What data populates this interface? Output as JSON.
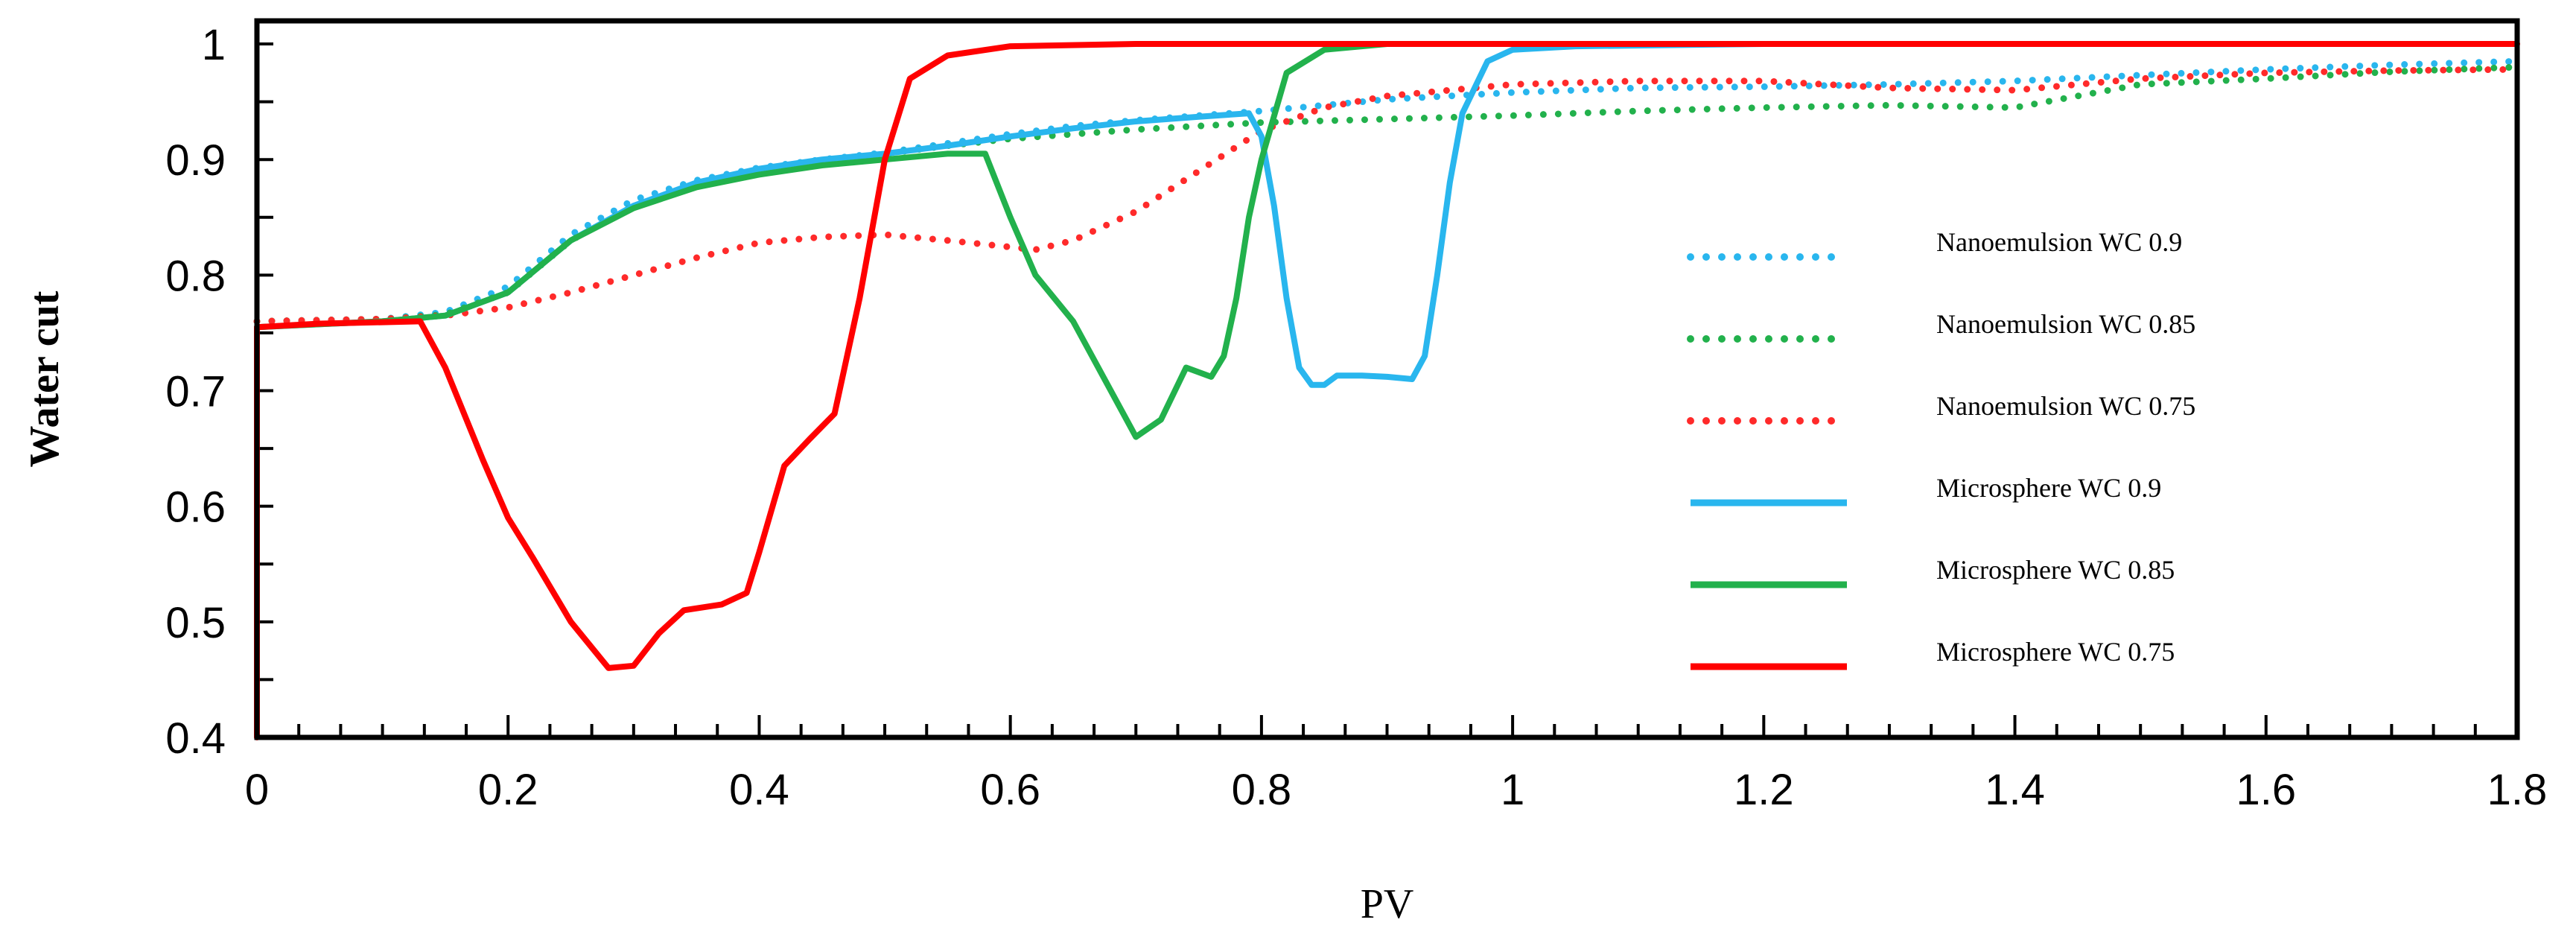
{
  "chart_data": {
    "type": "line",
    "title": "",
    "xlabel": "PV",
    "ylabel": "Water cut",
    "xlim": [
      0,
      1.8
    ],
    "ylim": [
      0.4,
      1.02
    ],
    "xticks": [
      0,
      0.2,
      0.4,
      0.6,
      0.8,
      1,
      1.2,
      1.4,
      1.6,
      1.8
    ],
    "xtick_labels": [
      "0",
      "0.2",
      "0.4",
      "0.6",
      "0.8",
      "1",
      "1.2",
      "1.4",
      "1.6",
      "1.8"
    ],
    "yticks": [
      0.4,
      0.5,
      0.6,
      0.7,
      0.8,
      0.9,
      1.0
    ],
    "ytick_labels": [
      "0.4",
      "0.5",
      "0.6",
      "0.7",
      "0.8",
      "0.9",
      "1"
    ],
    "legend_position": "right-center",
    "series": [
      {
        "name": "Nanoemulsion WC 0.9",
        "color": "#29b6ee",
        "style": "dotted",
        "points": [
          [
            0,
            0.76
          ],
          [
            0.1,
            0.762
          ],
          [
            0.15,
            0.768
          ],
          [
            0.2,
            0.79
          ],
          [
            0.25,
            0.835
          ],
          [
            0.3,
            0.865
          ],
          [
            0.35,
            0.882
          ],
          [
            0.4,
            0.893
          ],
          [
            0.45,
            0.9
          ],
          [
            0.5,
            0.906
          ],
          [
            0.55,
            0.914
          ],
          [
            0.6,
            0.922
          ],
          [
            0.65,
            0.929
          ],
          [
            0.7,
            0.934
          ],
          [
            0.75,
            0.938
          ],
          [
            0.8,
            0.942
          ],
          [
            0.85,
            0.947
          ],
          [
            0.9,
            0.952
          ],
          [
            1.0,
            0.958
          ],
          [
            1.1,
            0.962
          ],
          [
            1.2,
            0.963
          ],
          [
            1.3,
            0.965
          ],
          [
            1.4,
            0.968
          ],
          [
            1.5,
            0.973
          ],
          [
            1.6,
            0.978
          ],
          [
            1.7,
            0.982
          ],
          [
            1.8,
            0.985
          ]
        ]
      },
      {
        "name": "Nanoemulsion WC 0.85",
        "color": "#22b14c",
        "style": "dotted",
        "points": [
          [
            0,
            0.76
          ],
          [
            0.1,
            0.762
          ],
          [
            0.15,
            0.766
          ],
          [
            0.2,
            0.785
          ],
          [
            0.25,
            0.83
          ],
          [
            0.3,
            0.86
          ],
          [
            0.35,
            0.878
          ],
          [
            0.4,
            0.89
          ],
          [
            0.45,
            0.898
          ],
          [
            0.5,
            0.905
          ],
          [
            0.55,
            0.912
          ],
          [
            0.6,
            0.918
          ],
          [
            0.7,
            0.926
          ],
          [
            0.8,
            0.932
          ],
          [
            0.9,
            0.935
          ],
          [
            1.0,
            0.938
          ],
          [
            1.1,
            0.942
          ],
          [
            1.2,
            0.945
          ],
          [
            1.3,
            0.947
          ],
          [
            1.4,
            0.945
          ],
          [
            1.45,
            0.955
          ],
          [
            1.5,
            0.965
          ],
          [
            1.6,
            0.97
          ],
          [
            1.7,
            0.976
          ],
          [
            1.8,
            0.98
          ]
        ]
      },
      {
        "name": "Nanoemulsion WC 0.75",
        "color": "#ff2a2a",
        "style": "dotted",
        "points": [
          [
            0,
            0.76
          ],
          [
            0.1,
            0.762
          ],
          [
            0.15,
            0.765
          ],
          [
            0.2,
            0.772
          ],
          [
            0.25,
            0.785
          ],
          [
            0.3,
            0.8
          ],
          [
            0.35,
            0.815
          ],
          [
            0.4,
            0.828
          ],
          [
            0.45,
            0.833
          ],
          [
            0.5,
            0.835
          ],
          [
            0.55,
            0.83
          ],
          [
            0.62,
            0.822
          ],
          [
            0.65,
            0.83
          ],
          [
            0.7,
            0.855
          ],
          [
            0.75,
            0.89
          ],
          [
            0.8,
            0.925
          ],
          [
            0.85,
            0.945
          ],
          [
            0.9,
            0.955
          ],
          [
            1.0,
            0.965
          ],
          [
            1.1,
            0.968
          ],
          [
            1.2,
            0.968
          ],
          [
            1.3,
            0.962
          ],
          [
            1.4,
            0.96
          ],
          [
            1.5,
            0.97
          ],
          [
            1.6,
            0.975
          ],
          [
            1.7,
            0.977
          ],
          [
            1.8,
            0.978
          ]
        ]
      },
      {
        "name": "Microsphere WC 0.9",
        "color": "#29b6ee",
        "style": "solid",
        "points": [
          [
            0,
            0.755
          ],
          [
            0.1,
            0.76
          ],
          [
            0.15,
            0.765
          ],
          [
            0.2,
            0.785
          ],
          [
            0.25,
            0.83
          ],
          [
            0.3,
            0.86
          ],
          [
            0.35,
            0.88
          ],
          [
            0.4,
            0.892
          ],
          [
            0.45,
            0.9
          ],
          [
            0.5,
            0.905
          ],
          [
            0.55,
            0.912
          ],
          [
            0.6,
            0.92
          ],
          [
            0.65,
            0.927
          ],
          [
            0.7,
            0.933
          ],
          [
            0.75,
            0.937
          ],
          [
            0.79,
            0.94
          ],
          [
            0.8,
            0.92
          ],
          [
            0.81,
            0.86
          ],
          [
            0.82,
            0.78
          ],
          [
            0.83,
            0.72
          ],
          [
            0.84,
            0.705
          ],
          [
            0.85,
            0.705
          ],
          [
            0.86,
            0.713
          ],
          [
            0.88,
            0.713
          ],
          [
            0.9,
            0.712
          ],
          [
            0.92,
            0.71
          ],
          [
            0.93,
            0.73
          ],
          [
            0.94,
            0.8
          ],
          [
            0.95,
            0.88
          ],
          [
            0.96,
            0.94
          ],
          [
            0.98,
            0.985
          ],
          [
            1.0,
            0.995
          ],
          [
            1.05,
            0.998
          ],
          [
            1.2,
            1.0
          ],
          [
            1.32,
            1.0
          ]
        ]
      },
      {
        "name": "Microsphere WC 0.85",
        "color": "#22b14c",
        "style": "solid",
        "points": [
          [
            0,
            0.755
          ],
          [
            0.1,
            0.76
          ],
          [
            0.15,
            0.765
          ],
          [
            0.2,
            0.785
          ],
          [
            0.25,
            0.83
          ],
          [
            0.3,
            0.858
          ],
          [
            0.35,
            0.876
          ],
          [
            0.4,
            0.887
          ],
          [
            0.45,
            0.895
          ],
          [
            0.5,
            0.9
          ],
          [
            0.55,
            0.905
          ],
          [
            0.58,
            0.905
          ],
          [
            0.6,
            0.85
          ],
          [
            0.62,
            0.8
          ],
          [
            0.65,
            0.76
          ],
          [
            0.7,
            0.66
          ],
          [
            0.72,
            0.675
          ],
          [
            0.74,
            0.72
          ],
          [
            0.76,
            0.712
          ],
          [
            0.77,
            0.73
          ],
          [
            0.78,
            0.78
          ],
          [
            0.79,
            0.85
          ],
          [
            0.8,
            0.9
          ],
          [
            0.82,
            0.975
          ],
          [
            0.85,
            0.995
          ],
          [
            0.9,
            1.0
          ]
        ]
      },
      {
        "name": "Microsphere WC 0.75",
        "color": "#ff0000",
        "style": "solid",
        "points": [
          [
            0,
            0.4
          ],
          [
            0,
            0.755
          ],
          [
            0.05,
            0.758
          ],
          [
            0.13,
            0.76
          ],
          [
            0.15,
            0.72
          ],
          [
            0.18,
            0.64
          ],
          [
            0.2,
            0.59
          ],
          [
            0.22,
            0.555
          ],
          [
            0.25,
            0.5
          ],
          [
            0.28,
            0.46
          ],
          [
            0.3,
            0.462
          ],
          [
            0.32,
            0.49
          ],
          [
            0.34,
            0.51
          ],
          [
            0.37,
            0.515
          ],
          [
            0.39,
            0.525
          ],
          [
            0.4,
            0.56
          ],
          [
            0.42,
            0.635
          ],
          [
            0.44,
            0.658
          ],
          [
            0.46,
            0.68
          ],
          [
            0.48,
            0.78
          ],
          [
            0.5,
            0.9
          ],
          [
            0.52,
            0.97
          ],
          [
            0.55,
            0.99
          ],
          [
            0.6,
            0.998
          ],
          [
            0.7,
            1.0
          ],
          [
            1.8,
            1.0
          ]
        ]
      }
    ]
  }
}
